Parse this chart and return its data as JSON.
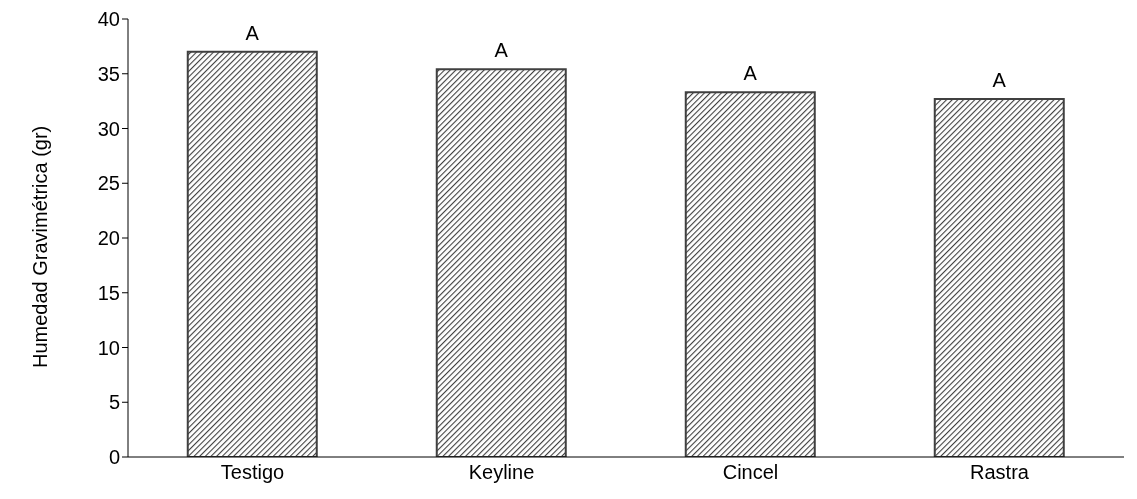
{
  "chart_data": {
    "type": "bar",
    "ylabel": "Humedad Gravimétrica (gr)",
    "categories": [
      "Testigo",
      "Keyline",
      "Cincel",
      "Rastra"
    ],
    "values": [
      37.0,
      35.4,
      33.3,
      32.7
    ],
    "color": "#404040",
    "ylim": [
      0,
      40
    ],
    "yticks": [
      0,
      5,
      10,
      15,
      20,
      25,
      30,
      35,
      40
    ],
    "grid": false,
    "legend": false,
    "annotations": [
      {
        "text": "A",
        "x": "Testigo",
        "y": 37.0
      },
      {
        "text": "A",
        "x": "Keyline",
        "y": 35.4
      },
      {
        "text": "A",
        "x": "Cincel",
        "y": 33.3
      },
      {
        "text": "A",
        "x": "Rastra",
        "y": 32.7
      }
    ]
  }
}
